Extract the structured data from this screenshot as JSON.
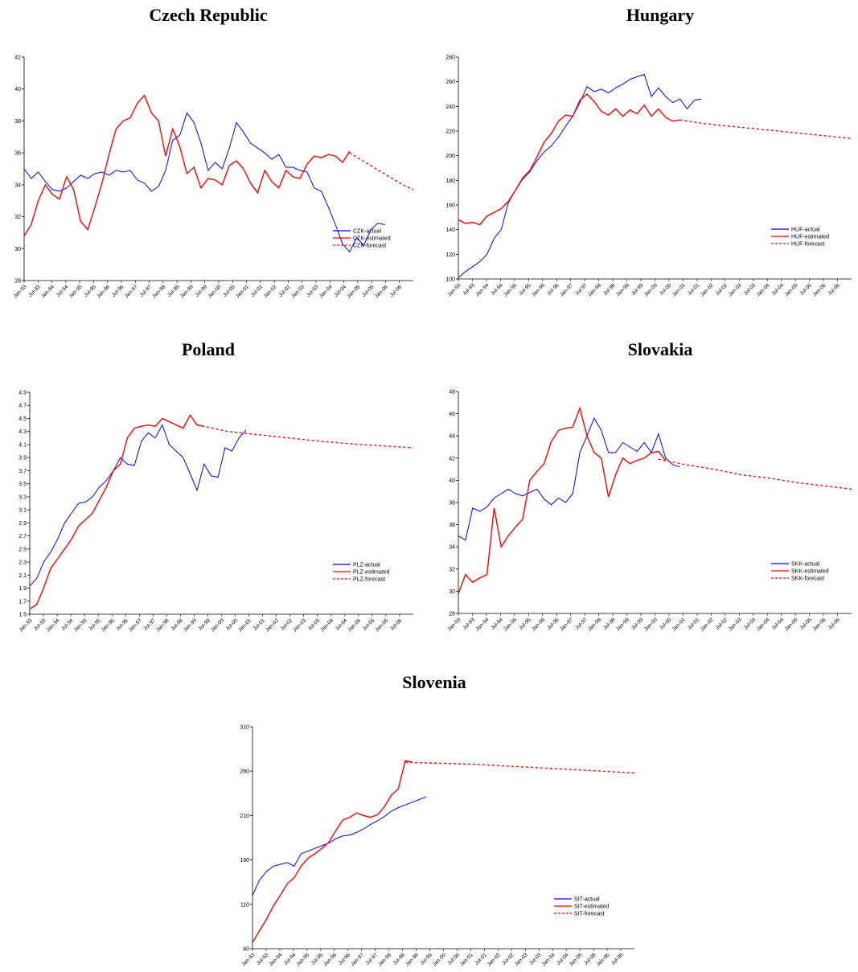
{
  "chart_data": [
    {
      "type": "line",
      "title": "Czech Republic",
      "ylim": [
        28,
        42
      ],
      "yticks": [
        28,
        30,
        32,
        34,
        36,
        38,
        40,
        42
      ],
      "x_tick_labels": [
        "Jan-93",
        "Jul-93",
        "Jan-94",
        "Jul-94",
        "Jan-95",
        "Jul-95",
        "Jan-96",
        "Jul-96",
        "Jan-97",
        "Jul-97",
        "Jan-98",
        "Jul-98",
        "Jan-99",
        "Jul-99",
        "Jan-00",
        "Jul-00",
        "Jan-01",
        "Jul-01",
        "Jan-02",
        "Jul-02",
        "Jan-03",
        "Jul-03",
        "Jan-04",
        "Jul-04",
        "Jan-05",
        "Jul-05",
        "Jan-06",
        "Jul-06"
      ],
      "legend_position": "bottom-right",
      "series": [
        {
          "name": "CZK-actual",
          "color": "#0000ff",
          "style": "solid",
          "t0": 0,
          "values": [
            35.0,
            34.4,
            34.8,
            34.2,
            33.7,
            33.6,
            33.8,
            34.2,
            34.6,
            34.4,
            34.7,
            34.8,
            34.6,
            34.9,
            34.8,
            34.9,
            34.3,
            34.1,
            33.6,
            33.9,
            34.9,
            36.8,
            37.1,
            38.5,
            37.9,
            36.6,
            34.9,
            35.4,
            35.0,
            36.3,
            37.9,
            37.3,
            36.6,
            36.3,
            36.0,
            35.6,
            35.9,
            35.1,
            35.1,
            34.9,
            34.8,
            33.8,
            33.6,
            32.6,
            31.5,
            30.3,
            29.8,
            30.7,
            30.2,
            31.2,
            31.6,
            31.5
          ]
        },
        {
          "name": "CZK-estimated",
          "color": "#ff0000",
          "style": "solid",
          "t0": 0,
          "values": [
            30.8,
            31.5,
            33.0,
            34.0,
            33.4,
            33.1,
            34.5,
            33.7,
            31.7,
            31.2,
            32.6,
            34.1,
            35.9,
            37.5,
            38.0,
            38.2,
            39.1,
            39.6,
            38.5,
            38.0,
            35.8,
            37.5,
            36.4,
            34.7,
            35.1,
            33.8,
            34.4,
            34.3,
            34.0,
            35.2,
            35.5,
            35.0,
            34.1,
            33.5,
            34.9,
            34.2,
            33.8,
            34.9,
            34.5,
            34.4,
            35.3,
            35.8,
            35.7,
            35.9,
            35.8,
            35.4,
            36.1
          ]
        },
        {
          "name": "CZK-forecast",
          "color": "#ff0000",
          "style": "dashed",
          "t0": 46,
          "values": [
            36.0,
            35.6,
            35.2,
            34.8,
            34.4,
            34.0,
            33.7
          ]
        }
      ]
    },
    {
      "type": "line",
      "title": "Hungary",
      "ylim": [
        100,
        280
      ],
      "yticks": [
        100,
        120,
        140,
        160,
        180,
        200,
        220,
        240,
        260,
        280
      ],
      "x_tick_labels": [
        "Jan-93",
        "Jul-93",
        "Jan-94",
        "Jul-94",
        "Jan-95",
        "Jul-95",
        "Jan-96",
        "Jul-96",
        "Jan-97",
        "Jul-97",
        "Jan-98",
        "Jul-98",
        "Jan-99",
        "Jul-99",
        "Jan-00",
        "Jul-00",
        "Jan-01",
        "Jul-01",
        "Jan-02",
        "Jul-02",
        "Jan-03",
        "Jul-03",
        "Jan-04",
        "Jul-04",
        "Jan-05",
        "Jul-05",
        "Jan-06",
        "Jul-06"
      ],
      "legend_position": "bottom-right",
      "series": [
        {
          "name": "HUF-actual",
          "color": "#0000ff",
          "style": "solid",
          "t0": 0,
          "values": [
            101,
            106,
            110,
            114,
            120,
            133,
            140,
            162,
            172,
            181,
            187,
            196,
            203,
            208,
            215,
            224,
            232,
            243,
            256,
            252,
            254,
            251,
            255,
            258,
            262,
            264,
            266,
            248,
            255,
            248,
            243,
            246,
            238,
            245,
            246
          ]
        },
        {
          "name": "HUF-estimated",
          "color": "#ff0000",
          "style": "solid",
          "t0": 0,
          "values": [
            148,
            145,
            146,
            144,
            151,
            154,
            157,
            163,
            172,
            182,
            188,
            199,
            211,
            218,
            228,
            233,
            232,
            245,
            250,
            244,
            236,
            233,
            238,
            232,
            237,
            234,
            241,
            232,
            238,
            231,
            228,
            229
          ]
        },
        {
          "name": "HUF-forecast",
          "color": "#ff0000",
          "style": "dashed",
          "t0": 31,
          "values": [
            229,
            226,
            224,
            222,
            220,
            218,
            216,
            214
          ]
        }
      ]
    },
    {
      "type": "line",
      "title": "Poland",
      "ylim": [
        1.5,
        4.9
      ],
      "yticks": [
        1.5,
        1.7,
        1.9,
        2.1,
        2.3,
        2.5,
        2.7,
        2.9,
        3.1,
        3.3,
        3.5,
        3.7,
        3.9,
        4.1,
        4.3,
        4.5,
        4.7,
        4.9
      ],
      "x_tick_labels": [
        "Jan-93",
        "Jul-93",
        "Jan-94",
        "Jul-94",
        "Jan-95",
        "Jul-95",
        "Jan-96",
        "Jul-96",
        "Jan-97",
        "Jul-97",
        "Jan-98",
        "Jul-98",
        "Jan-99",
        "Jul-99",
        "Jan-00",
        "Jul-00",
        "Jan-01",
        "Jul-01",
        "Jan-02",
        "Jul-02",
        "Jan-03",
        "Jul-03",
        "Jan-04",
        "Jul-04",
        "Jan-05",
        "Jul-05",
        "Jan-06",
        "Jul-06"
      ],
      "legend_position": "bottom-right",
      "series": [
        {
          "name": "PLZ-actual",
          "color": "#0000ff",
          "style": "solid",
          "t0": 0,
          "values": [
            1.93,
            2.05,
            2.3,
            2.45,
            2.65,
            2.9,
            3.05,
            3.2,
            3.22,
            3.3,
            3.45,
            3.55,
            3.7,
            3.9,
            3.8,
            3.78,
            4.15,
            4.28,
            4.2,
            4.4,
            4.1,
            4.0,
            3.9,
            3.65,
            3.4,
            3.8,
            3.62,
            3.6,
            4.05,
            4.0,
            4.2,
            4.32
          ]
        },
        {
          "name": "PLZ-estimated",
          "color": "#ff0000",
          "style": "solid",
          "t0": 0,
          "values": [
            1.58,
            1.65,
            1.9,
            2.2,
            2.35,
            2.5,
            2.65,
            2.85,
            2.95,
            3.05,
            3.25,
            3.45,
            3.7,
            3.8,
            4.2,
            4.35,
            4.38,
            4.4,
            4.38,
            4.5,
            4.45,
            4.4,
            4.35,
            4.55,
            4.4,
            4.38
          ]
        },
        {
          "name": "PLZ-forecast",
          "color": "#ff0000",
          "style": "dashed",
          "t0": 24,
          "values": [
            4.4,
            4.3,
            4.25,
            4.2,
            4.15,
            4.11,
            4.08,
            4.05
          ]
        }
      ]
    },
    {
      "type": "line",
      "title": "Slovakia",
      "ylim": [
        28,
        48
      ],
      "yticks": [
        28,
        30,
        32,
        34,
        36,
        38,
        40,
        42,
        44,
        46,
        48
      ],
      "x_tick_labels": [
        "Jan-93",
        "Jul-93",
        "Jan-94",
        "Jul-94",
        "Jan-95",
        "Jul-95",
        "Jan-96",
        "Jul-96",
        "Jan-97",
        "Jul-97",
        "Jan-98",
        "Jul-98",
        "Jan-99",
        "Jul-99",
        "Jan-00",
        "Jul-00",
        "Jan-01",
        "Jul-01",
        "Jan-02",
        "Jul-02",
        "Jan-03",
        "Jul-03",
        "Jan-04",
        "Jul-04",
        "Jan-05",
        "Jul-05",
        "Jan-06",
        "Jul-06"
      ],
      "legend_position": "bottom-right",
      "series": [
        {
          "name": "SKK-actual",
          "color": "#0000ff",
          "style": "solid",
          "t0": 0,
          "values": [
            35.0,
            34.6,
            37.5,
            37.2,
            37.6,
            38.4,
            38.8,
            39.2,
            38.8,
            38.6,
            38.9,
            39.2,
            38.3,
            37.8,
            38.4,
            38.0,
            38.8,
            42.5,
            44.0,
            45.6,
            44.5,
            42.5,
            42.5,
            43.4,
            43.0,
            42.6,
            43.4,
            42.5,
            44.2,
            42.0,
            41.4,
            41.2
          ]
        },
        {
          "name": "SKK-estimated",
          "color": "#ff0000",
          "style": "solid",
          "t0": 0,
          "values": [
            29.8,
            31.5,
            30.8,
            31.2,
            31.5,
            37.5,
            34.0,
            35.0,
            35.8,
            36.5,
            40.0,
            40.8,
            41.5,
            43.5,
            44.5,
            44.7,
            44.8,
            46.5,
            44.0,
            42.5,
            42.0,
            38.5,
            40.5,
            42.0,
            41.5,
            41.8,
            42.0,
            42.5,
            42.6,
            41.8
          ]
        },
        {
          "name": "SKK-forecast",
          "color": "#ff0000",
          "style": "dashed",
          "t0": 28,
          "values": [
            41.9,
            41.4,
            41.0,
            40.5,
            40.2,
            39.8,
            39.5,
            39.2
          ]
        }
      ]
    },
    {
      "type": "line",
      "title": "Slovenia",
      "ylim": [
        60,
        310
      ],
      "yticks": [
        60,
        110,
        160,
        210,
        260,
        310
      ],
      "x_tick_labels": [
        "Jan-93",
        "Jul-93",
        "Jan-94",
        "Jul-94",
        "Jan-95",
        "Jul-95",
        "Jan-96",
        "Jul-96",
        "Jan-97",
        "Jul-97",
        "Jan-98",
        "Jul-98",
        "Jan-99",
        "Jul-99",
        "Jan-00",
        "Jul-00",
        "Jan-01",
        "Jul-01",
        "Jan-02",
        "Jul-02",
        "Jan-03",
        "Jul-03",
        "Jan-04",
        "Jul-04",
        "Jan-05",
        "Jul-05",
        "Jan-06",
        "Jul-06"
      ],
      "legend_position": "bottom-right",
      "series": [
        {
          "name": "SIT-actual",
          "color": "#0000ff",
          "style": "solid",
          "t0": 0,
          "values": [
            120,
            137,
            147,
            153,
            155,
            157,
            153,
            167,
            170,
            173,
            176,
            179,
            184,
            187,
            188,
            191,
            195,
            200,
            204,
            209,
            215,
            219,
            222,
            225,
            228,
            231
          ]
        },
        {
          "name": "SIT-estimated",
          "color": "#ff0000",
          "style": "solid",
          "t0": 0,
          "values": [
            67,
            80,
            93,
            108,
            120,
            133,
            140,
            153,
            162,
            167,
            173,
            180,
            193,
            205,
            208,
            213,
            210,
            208,
            211,
            220,
            233,
            240,
            272,
            270
          ]
        },
        {
          "name": "SIT-forecast",
          "color": "#ff0000",
          "style": "dashed",
          "t0": 22,
          "values": [
            270,
            269,
            268,
            266,
            264,
            262,
            260,
            258
          ]
        }
      ]
    }
  ]
}
